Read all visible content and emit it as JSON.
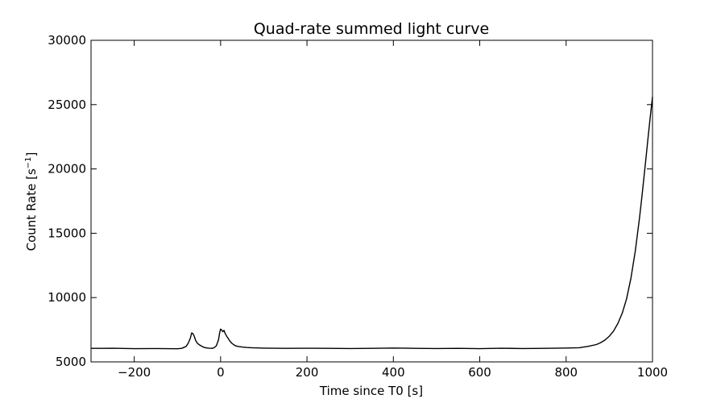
{
  "chart_data": {
    "type": "line",
    "title": "Quad-rate summed light curve",
    "xlabel": "Time since T0 [s]",
    "ylabel_main": "Count Rate [s",
    "ylabel_sup": "−1",
    "ylabel_close": "]",
    "xlim": [
      -300,
      1000
    ],
    "ylim": [
      5000,
      30000
    ],
    "xticks": [
      -200,
      0,
      200,
      400,
      600,
      800,
      1000
    ],
    "xtick_labels": [
      "−200",
      "0",
      "200",
      "400",
      "600",
      "800",
      "1000"
    ],
    "yticks": [
      5000,
      10000,
      15000,
      20000,
      25000,
      30000
    ],
    "ytick_labels": [
      "5000",
      "10000",
      "15000",
      "20000",
      "25000",
      "30000"
    ],
    "grid": false,
    "series": [
      {
        "color": "#000000",
        "x": [
          -300,
          -250,
          -200,
          -150,
          -100,
          -90,
          -80,
          -75,
          -70,
          -67,
          -64,
          -61,
          -58,
          -55,
          -50,
          -45,
          -40,
          -35,
          -30,
          -25,
          -20,
          -15,
          -10,
          -5,
          -2,
          0,
          2,
          5,
          8,
          10,
          14,
          18,
          22,
          26,
          30,
          35,
          40,
          50,
          60,
          70,
          80,
          100,
          150,
          200,
          250,
          300,
          350,
          400,
          450,
          500,
          550,
          600,
          650,
          700,
          750,
          800,
          830,
          850,
          870,
          880,
          890,
          900,
          910,
          920,
          930,
          940,
          950,
          960,
          970,
          975,
          980,
          985,
          990,
          995,
          1000
        ],
        "y": [
          6050,
          6060,
          6030,
          6040,
          6020,
          6050,
          6200,
          6450,
          6850,
          7250,
          7200,
          7000,
          6700,
          6500,
          6350,
          6250,
          6150,
          6100,
          6080,
          6060,
          6050,
          6100,
          6250,
          6700,
          7300,
          7550,
          7500,
          7350,
          7450,
          7250,
          7000,
          6800,
          6600,
          6450,
          6350,
          6250,
          6200,
          6150,
          6120,
          6100,
          6090,
          6070,
          6050,
          6060,
          6050,
          6040,
          6050,
          6080,
          6050,
          6040,
          6050,
          6030,
          6060,
          6040,
          6050,
          6080,
          6100,
          6200,
          6350,
          6500,
          6700,
          7000,
          7400,
          8000,
          8800,
          9900,
          11500,
          13600,
          16200,
          17700,
          19300,
          20900,
          22500,
          24100,
          25600
        ]
      }
    ]
  }
}
